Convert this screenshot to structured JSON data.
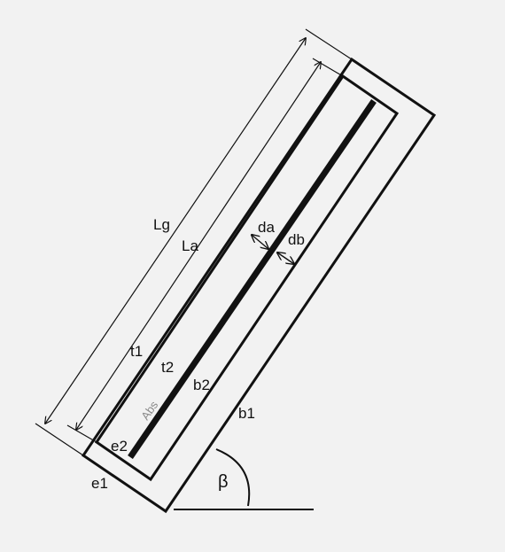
{
  "diagram": {
    "labels": {
      "Lg": "Lg",
      "La": "La",
      "da": "da",
      "db": "db",
      "t1": "t1",
      "t2": "t2",
      "b1": "b1",
      "b2": "b2",
      "e1": "e1",
      "e2": "e2",
      "abs": "Abs",
      "beta": "β"
    },
    "colors": {
      "background": "#f2f2f2",
      "stroke": "#111111",
      "absorber": "#111111",
      "abs_label": "#8a8a8a"
    }
  }
}
